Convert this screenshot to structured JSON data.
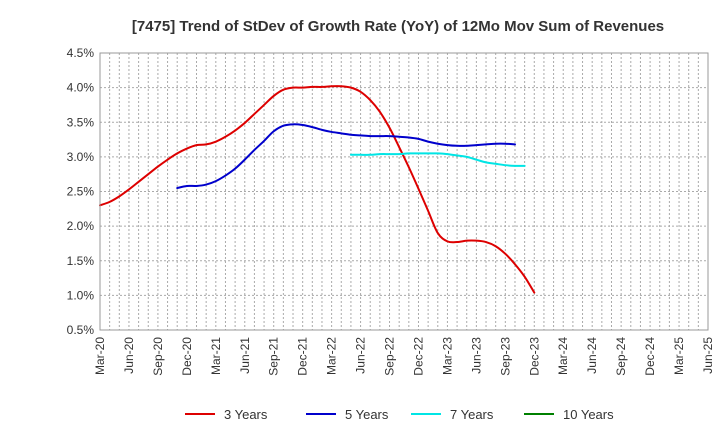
{
  "chart_data": {
    "type": "line",
    "title": "[7475]  Trend of StDev of Growth Rate (YoY) of 12Mo Mov Sum of Revenues",
    "xlabel": "",
    "ylabel": "",
    "ylim": [
      0.5,
      4.5
    ],
    "y_ticks": [
      "0.5%",
      "1.0%",
      "1.5%",
      "2.0%",
      "2.5%",
      "3.0%",
      "3.5%",
      "4.0%",
      "4.5%"
    ],
    "y_tick_values": [
      0.5,
      1.0,
      1.5,
      2.0,
      2.5,
      3.0,
      3.5,
      4.0,
      4.5
    ],
    "x_ticks": [
      "Mar-20",
      "Jun-20",
      "Sep-20",
      "Dec-20",
      "Mar-21",
      "Jun-21",
      "Sep-21",
      "Dec-21",
      "Mar-22",
      "Jun-22",
      "Sep-22",
      "Dec-22",
      "Mar-23",
      "Jun-23",
      "Sep-23",
      "Dec-23",
      "Mar-24",
      "Jun-24",
      "Sep-24",
      "Dec-24",
      "Mar-25",
      "Jun-25"
    ],
    "grid": true,
    "legend_position": "bottom",
    "series": [
      {
        "name": "3 Years",
        "color": "#dd0000",
        "start_index": 0,
        "values": [
          2.3,
          2.35,
          2.43,
          2.53,
          2.64,
          2.75,
          2.86,
          2.96,
          3.05,
          3.12,
          3.17,
          3.18,
          3.22,
          3.29,
          3.38,
          3.49,
          3.62,
          3.75,
          3.88,
          3.97,
          4.0,
          4.0,
          4.01,
          4.01,
          4.02,
          4.02,
          4.0,
          3.94,
          3.82,
          3.65,
          3.42,
          3.14,
          2.85,
          2.54,
          2.22,
          1.9,
          1.78,
          1.77,
          1.79,
          1.79,
          1.77,
          1.71,
          1.6,
          1.45,
          1.27,
          1.04
        ]
      },
      {
        "name": "5 Years",
        "color": "#0000cc",
        "start_index": 8,
        "values": [
          2.55,
          2.58,
          2.58,
          2.6,
          2.65,
          2.73,
          2.83,
          2.96,
          3.1,
          3.23,
          3.37,
          3.45,
          3.47,
          3.46,
          3.43,
          3.39,
          3.36,
          3.34,
          3.32,
          3.31,
          3.3,
          3.3,
          3.3,
          3.29,
          3.28,
          3.26,
          3.22,
          3.19,
          3.17,
          3.16,
          3.16,
          3.17,
          3.18,
          3.19,
          3.19,
          3.18
        ]
      },
      {
        "name": "7 Years",
        "color": "#00e5e5",
        "start_index": 26,
        "values": [
          3.03,
          3.03,
          3.03,
          3.04,
          3.04,
          3.04,
          3.05,
          3.05,
          3.05,
          3.05,
          3.04,
          3.02,
          3.0,
          2.96,
          2.92,
          2.9,
          2.88,
          2.87,
          2.87
        ]
      },
      {
        "name": "10 Years",
        "color": "#008000",
        "start_index": 0,
        "values": []
      }
    ]
  }
}
